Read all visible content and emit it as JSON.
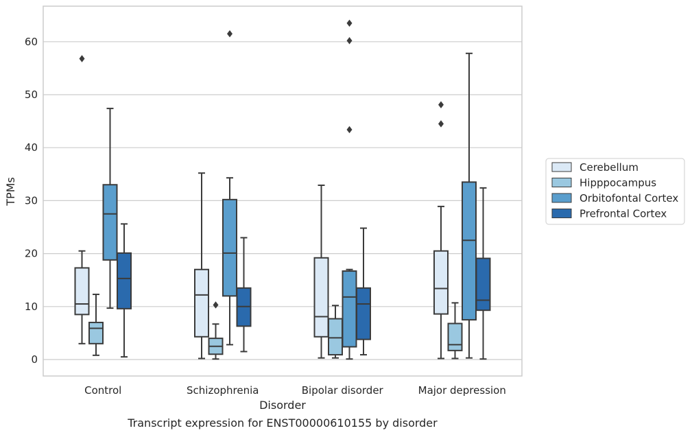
{
  "chart_data": {
    "type": "box",
    "title": "Transcript expression for ENST00000610155 by disorder",
    "xlabel": "Disorder",
    "ylabel": "TPMs",
    "ylim": [
      -3,
      66.5
    ],
    "yticks": [
      0,
      10,
      20,
      30,
      40,
      50,
      60
    ],
    "grid": true,
    "legend_position": "right",
    "categories": [
      "Control",
      "Schizophrenia",
      "Bipolar disorder",
      "Major depression"
    ],
    "series": [
      {
        "name": "Cerebellum",
        "color": "#dbe9f6",
        "boxes": [
          {
            "whisker_low": 3.0,
            "q1": 8.5,
            "median": 10.5,
            "q3": 17.3,
            "whisker_high": 20.5,
            "outliers": [
              56.8
            ]
          },
          {
            "whisker_low": 0.2,
            "q1": 4.3,
            "median": 12.2,
            "q3": 17.0,
            "whisker_high": 35.2,
            "outliers": []
          },
          {
            "whisker_low": 0.3,
            "q1": 4.3,
            "median": 8.1,
            "q3": 19.2,
            "whisker_high": 32.9,
            "outliers": []
          },
          {
            "whisker_low": 0.2,
            "q1": 8.6,
            "median": 13.4,
            "q3": 20.5,
            "whisker_high": 28.9,
            "outliers": [
              44.5,
              48.1
            ]
          }
        ]
      },
      {
        "name": "Hipppocampus",
        "color": "#9ac8e0",
        "boxes": [
          {
            "whisker_low": 0.8,
            "q1": 3.0,
            "median": 5.9,
            "q3": 7.0,
            "whisker_high": 12.3,
            "outliers": []
          },
          {
            "whisker_low": 0.1,
            "q1": 1.0,
            "median": 2.5,
            "q3": 4.0,
            "whisker_high": 6.7,
            "outliers": [
              10.3
            ]
          },
          {
            "whisker_low": 0.3,
            "q1": 0.9,
            "median": 4.1,
            "q3": 7.7,
            "whisker_high": 10.2,
            "outliers": []
          },
          {
            "whisker_low": 0.2,
            "q1": 1.7,
            "median": 2.8,
            "q3": 6.8,
            "whisker_high": 10.7,
            "outliers": []
          }
        ]
      },
      {
        "name": "Orbitofontal Cortex",
        "color": "#5a9ecd",
        "boxes": [
          {
            "whisker_low": 9.7,
            "q1": 18.8,
            "median": 27.5,
            "q3": 33.0,
            "whisker_high": 47.4,
            "outliers": []
          },
          {
            "whisker_low": 2.8,
            "q1": 12.0,
            "median": 20.1,
            "q3": 30.2,
            "whisker_high": 34.3,
            "outliers": [
              61.5
            ]
          },
          {
            "whisker_low": 0.1,
            "q1": 2.4,
            "median": 11.8,
            "q3": 16.7,
            "whisker_high": 17.0,
            "outliers": [
              43.4,
              60.2,
              63.5
            ]
          },
          {
            "whisker_low": 0.3,
            "q1": 7.5,
            "median": 22.5,
            "q3": 33.5,
            "whisker_high": 57.8,
            "outliers": []
          }
        ]
      },
      {
        "name": "Prefrontal Cortex",
        "color": "#2a6aad",
        "boxes": [
          {
            "whisker_low": 0.5,
            "q1": 9.6,
            "median": 15.3,
            "q3": 20.1,
            "whisker_high": 25.6,
            "outliers": []
          },
          {
            "whisker_low": 1.5,
            "q1": 6.3,
            "median": 10.0,
            "q3": 13.5,
            "whisker_high": 23.0,
            "outliers": []
          },
          {
            "whisker_low": 0.9,
            "q1": 3.8,
            "median": 10.5,
            "q3": 13.5,
            "whisker_high": 24.8,
            "outliers": []
          },
          {
            "whisker_low": 0.1,
            "q1": 9.3,
            "median": 11.2,
            "q3": 19.1,
            "whisker_high": 32.4,
            "outliers": []
          }
        ]
      }
    ]
  }
}
